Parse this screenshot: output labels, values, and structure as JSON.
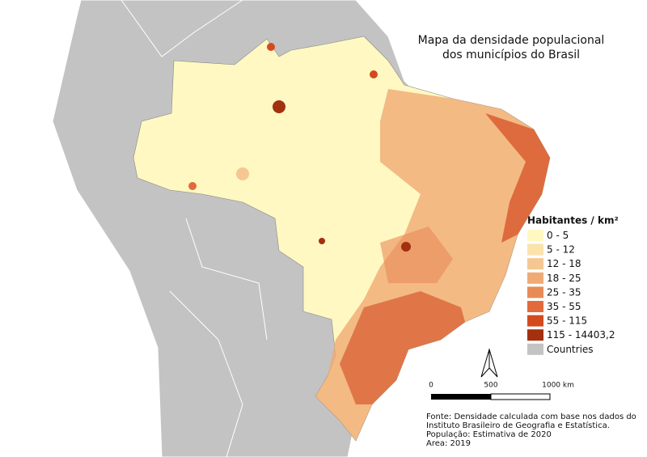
{
  "title": [
    "Mapa da densidade populacional",
    "dos municípios do Brasil"
  ],
  "legend": {
    "title": "Habitantes / km²",
    "items": [
      {
        "label": "0 - 5",
        "color": "#fff8c2"
      },
      {
        "label": "5 - 12",
        "color": "#fbe3ab"
      },
      {
        "label": "12 - 18",
        "color": "#f6c792"
      },
      {
        "label": "18 - 25",
        "color": "#f0aa74"
      },
      {
        "label": "25 - 35",
        "color": "#e98b57"
      },
      {
        "label": "35 - 55",
        "color": "#e16b3b"
      },
      {
        "label": "55 - 115",
        "color": "#d44a1f"
      },
      {
        "label": "115 - 14403,2",
        "color": "#a3300f"
      },
      {
        "label": "Countries",
        "color": "#c3c3c3"
      }
    ]
  },
  "scale_bar": {
    "labels": [
      "0",
      "500",
      "1000 km"
    ]
  },
  "source": [
    "Fonte: Densidade calculada com base nos dados do",
    "Instituto Brasileiro de Geografia e Estatística.",
    "População: Estimativa de 2020",
    "Area: 2019"
  ]
}
